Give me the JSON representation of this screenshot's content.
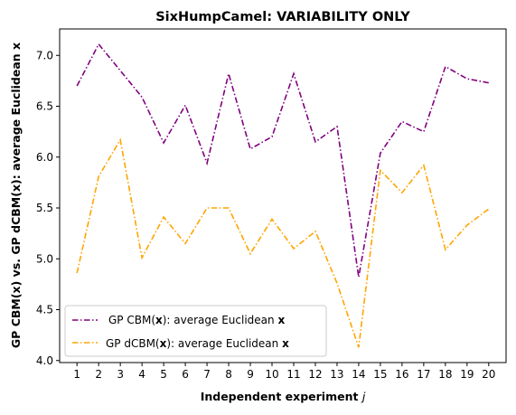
{
  "chart_data": {
    "type": "line",
    "title": "SixHumpCamel: VARIABILITY ONLY",
    "xlabel": "Independent experiment",
    "xlabel_var": "j",
    "ylabel": "GP CBM(x) vs. GP dCBM(x): average Euclidean x",
    "x": [
      1,
      2,
      3,
      4,
      5,
      6,
      7,
      8,
      9,
      10,
      11,
      12,
      13,
      14,
      15,
      16,
      17,
      18,
      19,
      20
    ],
    "ylim": [
      3.98,
      7.26
    ],
    "yticks": [
      "4.0",
      "4.5",
      "5.0",
      "5.5",
      "6.0",
      "6.5",
      "7.0"
    ],
    "grid": false,
    "legend_position": "lower left",
    "series": [
      {
        "name": "GP CBM(x): average Euclidean x",
        "legend_prefix": "GP CBM(",
        "legend_bold": "x",
        "legend_suffix": "): average Euclidean ",
        "legend_end_bold": "x",
        "color": "#800080",
        "values": [
          6.7,
          7.11,
          6.85,
          6.59,
          6.14,
          6.51,
          5.94,
          6.82,
          6.08,
          6.2,
          6.82,
          6.15,
          6.3,
          4.82,
          6.04,
          6.35,
          6.25,
          6.89,
          6.77,
          6.73
        ]
      },
      {
        "name": "GP dCBM(x): average Euclidean x",
        "legend_prefix": "GP dCBM(",
        "legend_bold": "x",
        "legend_suffix": "): average Euclidean ",
        "legend_end_bold": "x",
        "color": "#FFA500",
        "values": [
          4.86,
          5.81,
          6.17,
          5.01,
          5.41,
          5.15,
          5.5,
          5.5,
          5.05,
          5.39,
          5.1,
          5.27,
          4.76,
          4.13,
          5.87,
          5.65,
          5.92,
          5.09,
          5.33,
          5.49
        ]
      }
    ]
  }
}
